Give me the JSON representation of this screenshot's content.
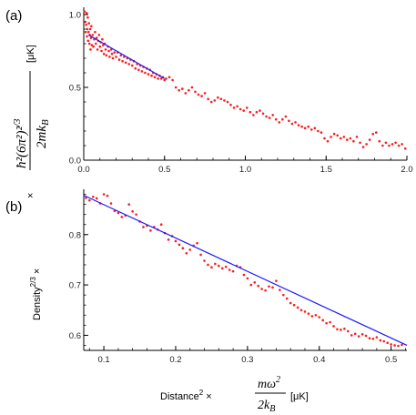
{
  "chart_data": [
    {
      "type": "scatter",
      "panel_label": "(a)",
      "xlabel": "",
      "ylabel_unit": "[μK]",
      "xlim": [
        0,
        2.0
      ],
      "ylim": [
        0,
        1.05
      ],
      "xticks": [
        "0.0",
        "0.5",
        "1.0",
        "1.5",
        "2.0"
      ],
      "yticks": [
        "0.0",
        "0.5",
        "1.0"
      ],
      "grid": false,
      "series": [
        {
          "kind": "points",
          "color": "#ff1a1a",
          "points": [
            [
              0.005,
              1.02
            ],
            [
              0.01,
              0.95
            ],
            [
              0.012,
              0.88
            ],
            [
              0.015,
              0.93
            ],
            [
              0.018,
              1.01
            ],
            [
              0.02,
              0.85
            ],
            [
              0.022,
              0.9
            ],
            [
              0.025,
              0.98
            ],
            [
              0.027,
              0.82
            ],
            [
              0.03,
              0.88
            ],
            [
              0.032,
              0.94
            ],
            [
              0.035,
              0.8
            ],
            [
              0.037,
              0.86
            ],
            [
              0.04,
              0.9
            ],
            [
              0.042,
              0.76
            ],
            [
              0.045,
              0.84
            ],
            [
              0.047,
              0.92
            ],
            [
              0.05,
              0.79
            ],
            [
              0.055,
              0.86
            ],
            [
              0.06,
              0.78
            ],
            [
              0.065,
              0.83
            ],
            [
              0.07,
              0.88
            ],
            [
              0.075,
              0.8
            ],
            [
              0.08,
              0.84
            ],
            [
              0.085,
              0.76
            ],
            [
              0.09,
              0.82
            ],
            [
              0.095,
              0.86
            ],
            [
              0.1,
              0.78
            ],
            [
              0.105,
              0.81
            ],
            [
              0.11,
              0.75
            ],
            [
              0.115,
              0.83
            ],
            [
              0.12,
              0.79
            ],
            [
              0.125,
              0.73
            ],
            [
              0.13,
              0.8
            ],
            [
              0.135,
              0.76
            ],
            [
              0.14,
              0.72
            ],
            [
              0.15,
              0.78
            ],
            [
              0.155,
              0.75
            ],
            [
              0.16,
              0.71
            ],
            [
              0.17,
              0.76
            ],
            [
              0.175,
              0.73
            ],
            [
              0.18,
              0.7
            ],
            [
              0.19,
              0.74
            ],
            [
              0.2,
              0.71
            ],
            [
              0.21,
              0.74
            ],
            [
              0.22,
              0.69
            ],
            [
              0.23,
              0.72
            ],
            [
              0.24,
              0.68
            ],
            [
              0.25,
              0.71
            ],
            [
              0.26,
              0.67
            ],
            [
              0.27,
              0.7
            ],
            [
              0.28,
              0.66
            ],
            [
              0.29,
              0.69
            ],
            [
              0.3,
              0.65
            ],
            [
              0.31,
              0.68
            ],
            [
              0.32,
              0.63
            ],
            [
              0.33,
              0.66
            ],
            [
              0.34,
              0.62
            ],
            [
              0.35,
              0.65
            ],
            [
              0.36,
              0.61
            ],
            [
              0.37,
              0.64
            ],
            [
              0.38,
              0.6
            ],
            [
              0.39,
              0.63
            ],
            [
              0.4,
              0.59
            ],
            [
              0.41,
              0.62
            ],
            [
              0.42,
              0.58
            ],
            [
              0.43,
              0.6
            ],
            [
              0.44,
              0.57
            ],
            [
              0.45,
              0.59
            ],
            [
              0.46,
              0.56
            ],
            [
              0.47,
              0.58
            ],
            [
              0.48,
              0.56
            ],
            [
              0.49,
              0.57
            ],
            [
              0.5,
              0.55
            ],
            [
              0.51,
              0.56
            ],
            [
              0.53,
              0.57
            ],
            [
              0.55,
              0.55
            ],
            [
              0.57,
              0.5
            ],
            [
              0.59,
              0.48
            ],
            [
              0.61,
              0.49
            ],
            [
              0.63,
              0.46
            ],
            [
              0.65,
              0.48
            ],
            [
              0.67,
              0.5
            ],
            [
              0.69,
              0.47
            ],
            [
              0.71,
              0.45
            ],
            [
              0.73,
              0.44
            ],
            [
              0.75,
              0.46
            ],
            [
              0.77,
              0.42
            ],
            [
              0.79,
              0.4
            ],
            [
              0.81,
              0.41
            ],
            [
              0.83,
              0.43
            ],
            [
              0.85,
              0.42
            ],
            [
              0.87,
              0.41
            ],
            [
              0.89,
              0.4
            ],
            [
              0.91,
              0.38
            ],
            [
              0.93,
              0.36
            ],
            [
              0.95,
              0.37
            ],
            [
              0.97,
              0.35
            ],
            [
              0.99,
              0.34
            ],
            [
              1.01,
              0.36
            ],
            [
              1.03,
              0.33
            ],
            [
              1.05,
              0.31
            ],
            [
              1.07,
              0.33
            ],
            [
              1.09,
              0.34
            ],
            [
              1.11,
              0.32
            ],
            [
              1.13,
              0.3
            ],
            [
              1.15,
              0.29
            ],
            [
              1.17,
              0.31
            ],
            [
              1.19,
              0.28
            ],
            [
              1.21,
              0.26
            ],
            [
              1.23,
              0.28
            ],
            [
              1.25,
              0.3
            ],
            [
              1.27,
              0.27
            ],
            [
              1.29,
              0.25
            ],
            [
              1.31,
              0.26
            ],
            [
              1.33,
              0.24
            ],
            [
              1.35,
              0.23
            ],
            [
              1.37,
              0.22
            ],
            [
              1.39,
              0.23
            ],
            [
              1.41,
              0.21
            ],
            [
              1.43,
              0.22
            ],
            [
              1.45,
              0.2
            ],
            [
              1.47,
              0.19
            ],
            [
              1.49,
              0.15
            ],
            [
              1.51,
              0.13
            ],
            [
              1.53,
              0.16
            ],
            [
              1.55,
              0.18
            ],
            [
              1.57,
              0.17
            ],
            [
              1.59,
              0.15
            ],
            [
              1.61,
              0.16
            ],
            [
              1.63,
              0.14
            ],
            [
              1.65,
              0.15
            ],
            [
              1.67,
              0.13
            ],
            [
              1.69,
              0.16
            ],
            [
              1.71,
              0.12
            ],
            [
              1.73,
              0.09
            ],
            [
              1.75,
              0.11
            ],
            [
              1.77,
              0.14
            ],
            [
              1.79,
              0.18
            ],
            [
              1.81,
              0.19
            ],
            [
              1.83,
              0.13
            ],
            [
              1.85,
              0.1
            ],
            [
              1.87,
              0.12
            ],
            [
              1.89,
              0.1
            ],
            [
              1.91,
              0.11
            ],
            [
              1.93,
              0.12
            ],
            [
              1.95,
              0.1
            ],
            [
              1.97,
              0.11
            ],
            [
              1.99,
              0.08
            ]
          ]
        },
        {
          "kind": "fit_line",
          "color": "#1a1aff",
          "x": [
            0.03,
            0.5
          ],
          "y": [
            0.86,
            0.56
          ]
        }
      ]
    },
    {
      "type": "scatter",
      "panel_label": "(b)",
      "ylabel_main": "Density",
      "ylabel_sup": "2/3",
      "ylabel_suffix": " ×",
      "xlabel_main": "Distance",
      "xlabel_sup": "2",
      "xlabel_suffix": " ×",
      "xlabel_unit": "[μK]",
      "xlim": [
        0.072,
        0.522
      ],
      "ylim": [
        0.57,
        0.89
      ],
      "xticks": [
        "0.1",
        "0.2",
        "0.3",
        "0.4",
        "0.5"
      ],
      "yticks": [
        "0.6",
        "0.7",
        "0.8"
      ],
      "grid": false,
      "series": [
        {
          "kind": "points",
          "color": "#ff1a1a",
          "points": [
            [
              0.075,
              0.873
            ],
            [
              0.08,
              0.868
            ],
            [
              0.085,
              0.875
            ],
            [
              0.09,
              0.872
            ],
            [
              0.095,
              0.862
            ],
            [
              0.1,
              0.88
            ],
            [
              0.105,
              0.877
            ],
            [
              0.11,
              0.862
            ],
            [
              0.115,
              0.847
            ],
            [
              0.12,
              0.843
            ],
            [
              0.125,
              0.835
            ],
            [
              0.13,
              0.838
            ],
            [
              0.135,
              0.86
            ],
            [
              0.14,
              0.846
            ],
            [
              0.145,
              0.84
            ],
            [
              0.15,
              0.826
            ],
            [
              0.155,
              0.815
            ],
            [
              0.16,
              0.818
            ],
            [
              0.165,
              0.808
            ],
            [
              0.17,
              0.815
            ],
            [
              0.175,
              0.81
            ],
            [
              0.18,
              0.82
            ],
            [
              0.185,
              0.803
            ],
            [
              0.19,
              0.79
            ],
            [
              0.195,
              0.797
            ],
            [
              0.2,
              0.787
            ],
            [
              0.205,
              0.78
            ],
            [
              0.21,
              0.773
            ],
            [
              0.215,
              0.763
            ],
            [
              0.22,
              0.77
            ],
            [
              0.225,
              0.778
            ],
            [
              0.23,
              0.783
            ],
            [
              0.235,
              0.76
            ],
            [
              0.24,
              0.748
            ],
            [
              0.245,
              0.74
            ],
            [
              0.25,
              0.735
            ],
            [
              0.255,
              0.742
            ],
            [
              0.26,
              0.738
            ],
            [
              0.265,
              0.733
            ],
            [
              0.27,
              0.736
            ],
            [
              0.275,
              0.73
            ],
            [
              0.28,
              0.727
            ],
            [
              0.285,
              0.738
            ],
            [
              0.29,
              0.735
            ],
            [
              0.295,
              0.72
            ],
            [
              0.3,
              0.713
            ],
            [
              0.305,
              0.7
            ],
            [
              0.31,
              0.705
            ],
            [
              0.315,
              0.698
            ],
            [
              0.32,
              0.692
            ],
            [
              0.325,
              0.689
            ],
            [
              0.33,
              0.697
            ],
            [
              0.335,
              0.695
            ],
            [
              0.34,
              0.708
            ],
            [
              0.345,
              0.69
            ],
            [
              0.35,
              0.68
            ],
            [
              0.355,
              0.673
            ],
            [
              0.36,
              0.664
            ],
            [
              0.365,
              0.66
            ],
            [
              0.37,
              0.655
            ],
            [
              0.375,
              0.65
            ],
            [
              0.38,
              0.647
            ],
            [
              0.385,
              0.643
            ],
            [
              0.39,
              0.638
            ],
            [
              0.395,
              0.64
            ],
            [
              0.4,
              0.636
            ],
            [
              0.405,
              0.63
            ],
            [
              0.41,
              0.624
            ],
            [
              0.415,
              0.626
            ],
            [
              0.42,
              0.618
            ],
            [
              0.425,
              0.612
            ],
            [
              0.43,
              0.611
            ],
            [
              0.435,
              0.613
            ],
            [
              0.44,
              0.608
            ],
            [
              0.445,
              0.6
            ],
            [
              0.45,
              0.603
            ],
            [
              0.455,
              0.598
            ],
            [
              0.46,
              0.602
            ],
            [
              0.465,
              0.599
            ],
            [
              0.47,
              0.594
            ],
            [
              0.475,
              0.593
            ],
            [
              0.48,
              0.596
            ],
            [
              0.485,
              0.59
            ],
            [
              0.49,
              0.588
            ],
            [
              0.495,
              0.585
            ],
            [
              0.5,
              0.582
            ],
            [
              0.505,
              0.58
            ],
            [
              0.51,
              0.579
            ],
            [
              0.515,
              0.581
            ]
          ]
        },
        {
          "kind": "fit_line",
          "color": "#1a1aff",
          "x": [
            0.072,
            0.522
          ],
          "y": [
            0.878,
            0.58
          ]
        }
      ]
    }
  ]
}
